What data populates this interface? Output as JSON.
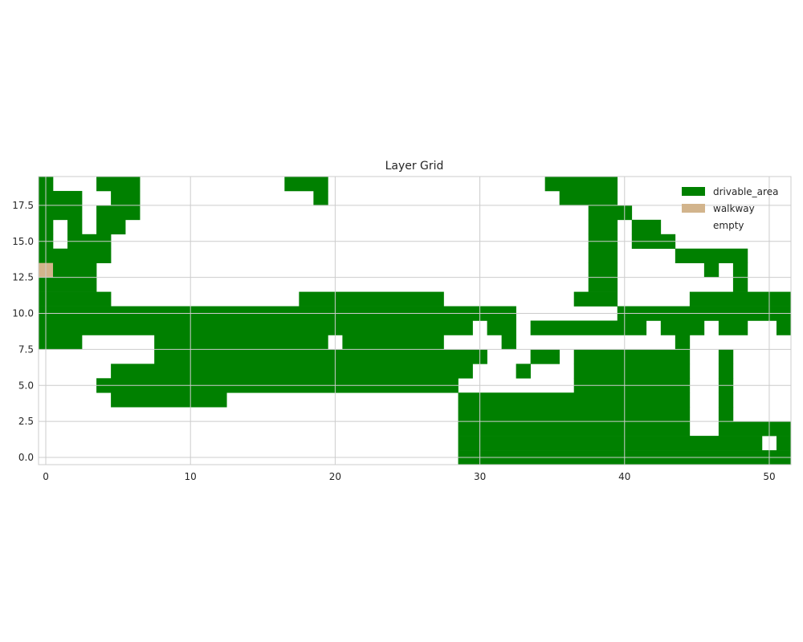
{
  "chart_data": {
    "type": "heatmap",
    "title": "Layer Grid",
    "xlabel": "",
    "ylabel": "",
    "xlim": [
      -0.5,
      51.5
    ],
    "ylim": [
      -0.5,
      19.5
    ],
    "xticks": [
      0,
      10,
      20,
      30,
      40,
      50
    ],
    "yticks": [
      0.0,
      2.5,
      5.0,
      7.5,
      10.0,
      12.5,
      15.0,
      17.5
    ],
    "xtick_labels": [
      "0",
      "10",
      "20",
      "30",
      "40",
      "50"
    ],
    "ytick_labels": [
      "0.0",
      "2.5",
      "5.0",
      "7.5",
      "10.0",
      "12.5",
      "15.0",
      "17.5"
    ],
    "grid": true,
    "legend_position": "top-right",
    "legend": [
      {
        "name": "drivable_area",
        "color": "#008000"
      },
      {
        "name": "walkway",
        "color": "#d2b48c"
      },
      {
        "name": "empty",
        "color": "#ffffff"
      }
    ],
    "row_order": "top row is y = 19, bottom row is y = 0",
    "cell_codes": {
      "0": "empty",
      "1": "drivable_area",
      "2": "walkway"
    },
    "cells": [
      "1000111000000000011100000000000000011111000000000000",
      "1110011000000000000100000000000000001111000000000000",
      "1110111000000000000000000000000000000011100000000000",
      "1010110000000000000000000000000000000011011000000000",
      "1011100000000000000000000000000000000011011100000000",
      "1111100000000000000000000000000000000011000011111000",
      "2111000000000000000000000000000000000011000000101000",
      "1111000000000000000000000000000000000011000000001000",
      "1111100000000000001111111111000000000111000001111111",
      "1111111111111111111111111111111110000000111111111111",
      "1111111111111111111111111111110110111111110111011001",
      "1110000011111111111101111111000010000000000010000000",
      "0000000011111111111111111111111000110111111110010000",
      "0000011111111111111111111111110001000111111110010000",
      "0000111111111111111111111111100000000111111110010000",
      "0000011111111000000000000000011111111111111110010000",
      "0000000000000000000000000000011111111111111110010000",
      "0000000000000000000000000000011111111111111110011111",
      "0000000000000000000000000000011111111111111111111101",
      "0000000000000000000000000000011111111111111111111111"
    ]
  }
}
